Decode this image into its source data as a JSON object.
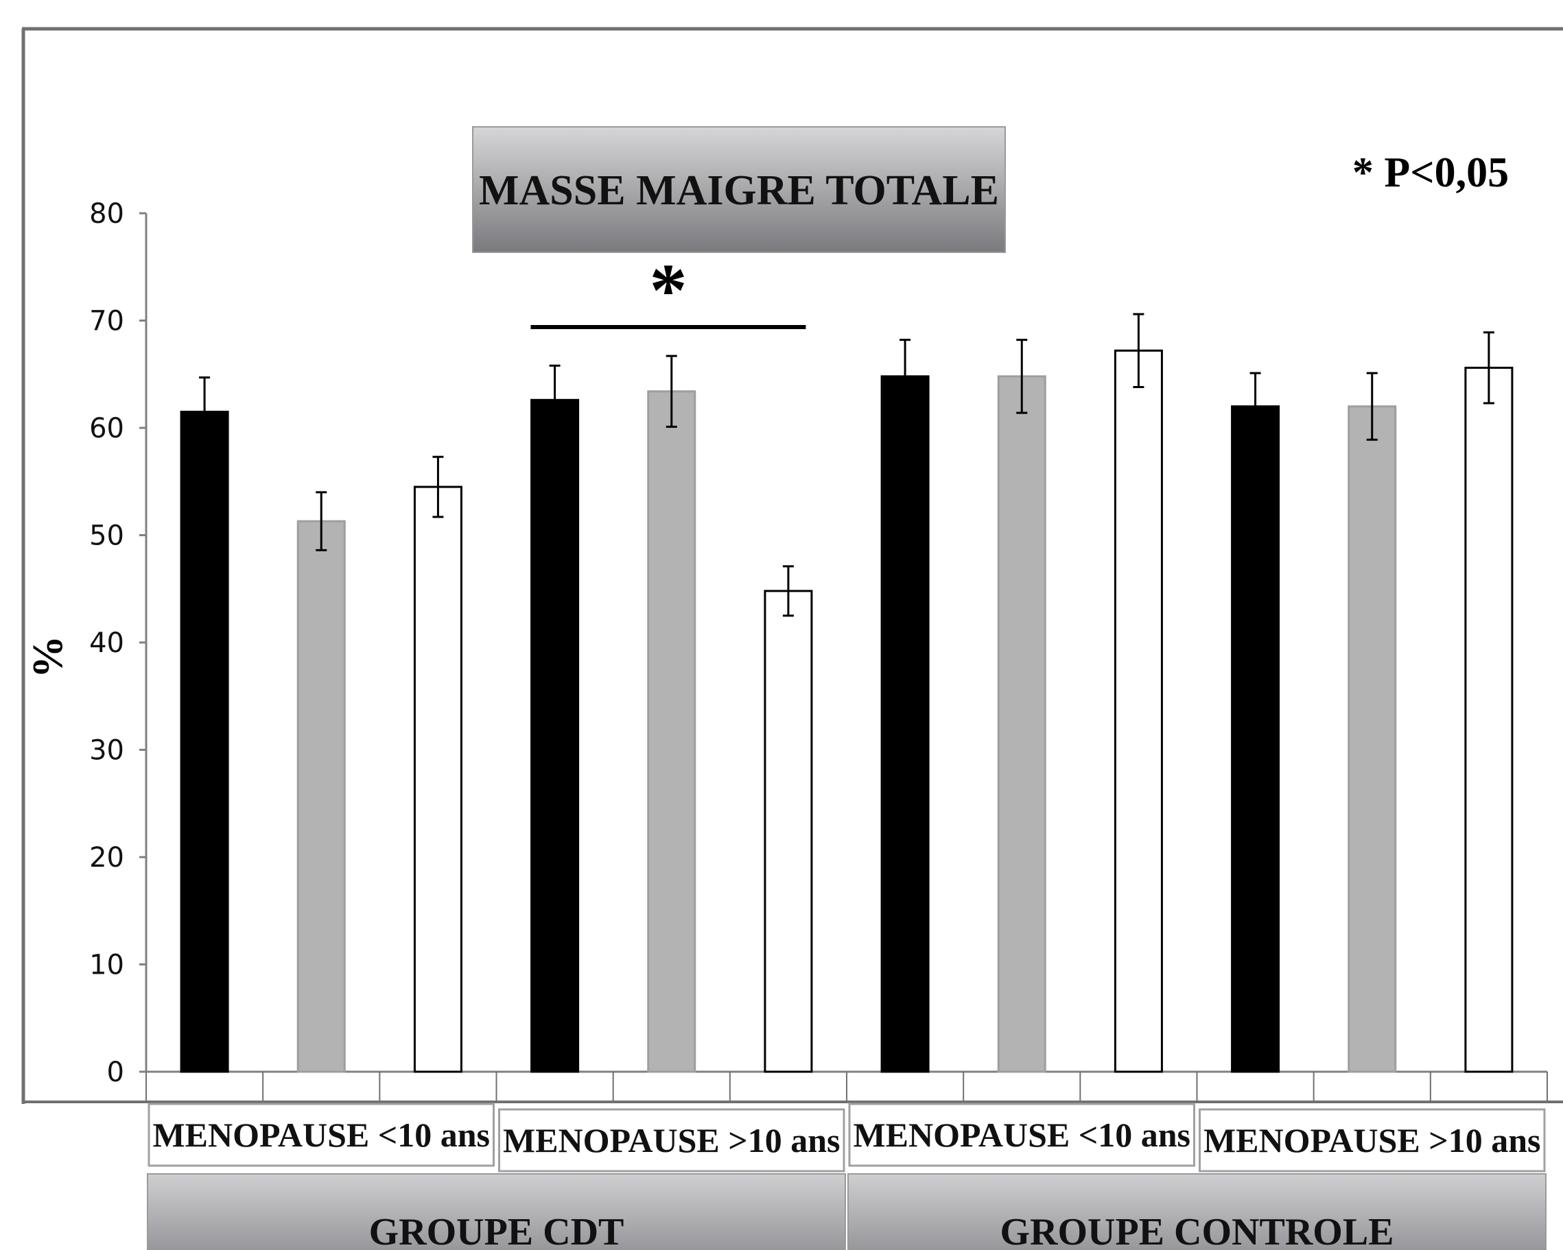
{
  "chart_data": {
    "type": "bar",
    "title": "MASSE MAIGRE TOTALE",
    "annotation": "* P<0,05",
    "significance_marker": "*",
    "ylabel": "%",
    "ylim": [
      0,
      80
    ],
    "yticks": [
      "0",
      "10",
      "20",
      "30",
      "40",
      "50",
      "60",
      "70",
      "80"
    ],
    "grid": false,
    "legend": "none",
    "subgroups": [
      {
        "label": "MENOPAUSE <10 ans",
        "group": "GROUPE CDT"
      },
      {
        "label": "MENOPAUSE >10 ans",
        "group": "GROUPE CDT"
      },
      {
        "label": "MENOPAUSE <10 ans",
        "group": "GROUPE CONTROLE"
      },
      {
        "label": "MENOPAUSE >10 ans",
        "group": "GROUPE CONTROLE"
      }
    ],
    "groups": [
      "GROUPE CDT",
      "GROUPE CONTROLE"
    ],
    "series_colors": [
      "#000000",
      "#b3b3b3",
      "#ffffff"
    ],
    "bars": [
      {
        "subgroup": 0,
        "series": 0,
        "value": 61.5,
        "error": 3.2
      },
      {
        "subgroup": 0,
        "series": 1,
        "value": 51.3,
        "error": 2.7
      },
      {
        "subgroup": 0,
        "series": 2,
        "value": 54.5,
        "error": 2.8
      },
      {
        "subgroup": 1,
        "series": 0,
        "value": 62.6,
        "error": 3.2
      },
      {
        "subgroup": 1,
        "series": 1,
        "value": 63.4,
        "error": 3.3
      },
      {
        "subgroup": 1,
        "series": 2,
        "value": 44.8,
        "error": 2.3
      },
      {
        "subgroup": 2,
        "series": 0,
        "value": 64.8,
        "error": 3.4
      },
      {
        "subgroup": 2,
        "series": 1,
        "value": 64.8,
        "error": 3.4
      },
      {
        "subgroup": 2,
        "series": 2,
        "value": 67.2,
        "error": 3.4
      },
      {
        "subgroup": 3,
        "series": 0,
        "value": 62.0,
        "error": 3.1
      },
      {
        "subgroup": 3,
        "series": 1,
        "value": 62.0,
        "error": 3.1
      },
      {
        "subgroup": 3,
        "series": 2,
        "value": 65.6,
        "error": 3.3
      }
    ],
    "significance_between_bars": [
      4,
      5
    ]
  }
}
